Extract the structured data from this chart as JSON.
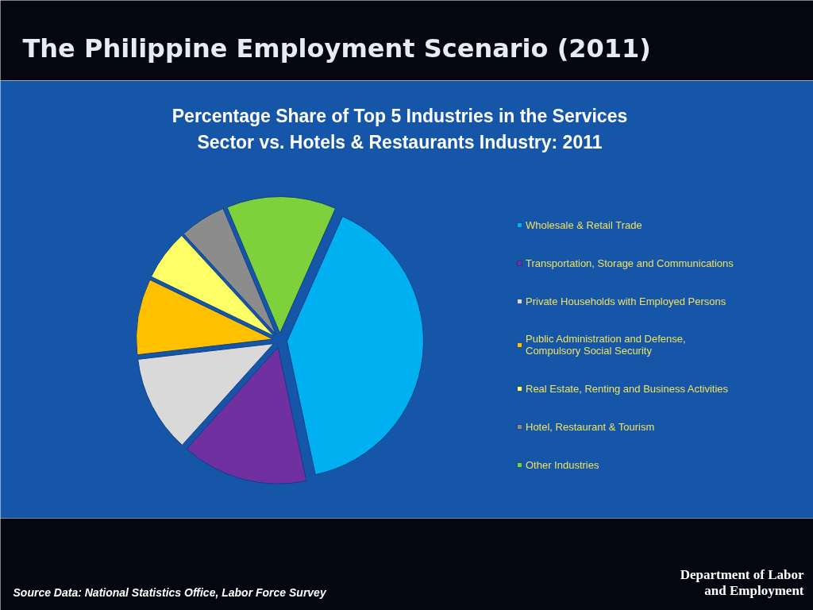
{
  "chart_data": {
    "type": "pie",
    "title": "The Philippine Employment Scenario (2011)",
    "subtitle": "Percentage Share of Top 5 Industries in the Services Sector vs. Hotels & Restaurants Industry: 2011",
    "categories": [
      "Wholesale & Retail Trade",
      "Transportation, Storage and Communications",
      "Private Households with Employed Persons",
      "Public Administration and Defense, Compulsory Social Security",
      "Real Estate, Renting and Business Activities",
      "Hotel, Restaurant & Tourism",
      "Other Industries"
    ],
    "values": [
      40,
      15,
      11.5,
      9,
      6,
      5.5,
      13
    ],
    "colors": [
      "#00b0f0",
      "#7030a0",
      "#d9d9d9",
      "#ffc000",
      "#ffff66",
      "#8c8c8c",
      "#7fd13b"
    ],
    "legend": "right",
    "annotations": [
      "Source Data: National Statistics Office, Labor Force Survey",
      "Department of Labor and Employment"
    ]
  }
}
